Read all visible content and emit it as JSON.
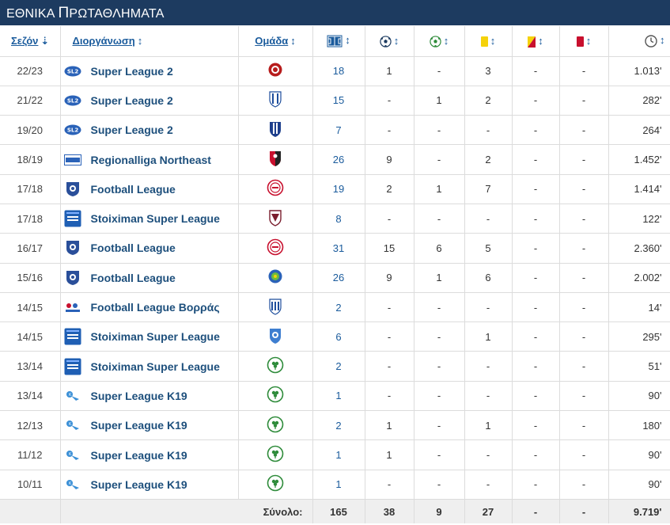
{
  "title": {
    "first": "ΕΘΝΙΚΑ",
    "second_cap": "Π",
    "second_rest": "ΡΩΤΑΘΛΗΜΑΤΑ"
  },
  "headers": {
    "season": "Σεζόν",
    "competition": "Διοργάνωση",
    "club": "Ομάδα",
    "sort_desc": "⇣",
    "sort_both": "↕"
  },
  "colors": {
    "header_bg": "#1d3b60",
    "link": "#1d4f7c",
    "yellow": "#f5d20a",
    "red": "#c8102e",
    "green": "#2e8b3a"
  },
  "rows": [
    {
      "season": "22/23",
      "competition": "Super League 2",
      "comp_icon": "super-league-2-logo",
      "club_icon": "club-crest-red-circle",
      "apps": "18",
      "goals": "1",
      "assists": "-",
      "yellow": "3",
      "yellow_red": "-",
      "red": "-",
      "minutes": "1.013'"
    },
    {
      "season": "21/22",
      "competition": "Super League 2",
      "comp_icon": "super-league-2-logo",
      "club_icon": "club-crest-blue-white-stripes",
      "apps": "15",
      "goals": "-",
      "assists": "1",
      "yellow": "2",
      "yellow_red": "-",
      "red": "-",
      "minutes": "282'"
    },
    {
      "season": "19/20",
      "competition": "Super League 2",
      "comp_icon": "super-league-2-logo",
      "club_icon": "club-crest-blue-striped-shield",
      "apps": "7",
      "goals": "-",
      "assists": "-",
      "yellow": "-",
      "yellow_red": "-",
      "red": "-",
      "minutes": "264'"
    },
    {
      "season": "18/19",
      "competition": "Regionalliga Northeast",
      "comp_icon": "regionalliga-logo",
      "club_icon": "club-crest-red-black-shield",
      "apps": "26",
      "goals": "9",
      "assists": "-",
      "yellow": "2",
      "yellow_red": "-",
      "red": "-",
      "minutes": "1.452'"
    },
    {
      "season": "17/18",
      "competition": "Football League",
      "comp_icon": "football-league-logo",
      "club_icon": "club-crest-red-white-circle",
      "apps": "19",
      "goals": "2",
      "assists": "1",
      "yellow": "7",
      "yellow_red": "-",
      "red": "-",
      "minutes": "1.414'"
    },
    {
      "season": "17/18",
      "competition": "Stoiximan Super League",
      "comp_icon": "stoiximan-logo",
      "club_icon": "club-crest-maroon-shield",
      "apps": "8",
      "goals": "-",
      "assists": "-",
      "yellow": "-",
      "yellow_red": "-",
      "red": "-",
      "minutes": "122'"
    },
    {
      "season": "16/17",
      "competition": "Football League",
      "comp_icon": "football-league-logo",
      "club_icon": "club-crest-red-white-circle",
      "apps": "31",
      "goals": "15",
      "assists": "6",
      "yellow": "5",
      "yellow_red": "-",
      "red": "-",
      "minutes": "2.360'"
    },
    {
      "season": "15/16",
      "competition": "Football League",
      "comp_icon": "football-league-logo",
      "club_icon": "club-crest-blue-green-round",
      "apps": "26",
      "goals": "9",
      "assists": "1",
      "yellow": "6",
      "yellow_red": "-",
      "red": "-",
      "minutes": "2.002'"
    },
    {
      "season": "14/15",
      "competition": "Football League Βορράς",
      "comp_icon": "football-league-north-logo",
      "club_icon": "club-crest-blue-white-shield",
      "apps": "2",
      "goals": "-",
      "assists": "-",
      "yellow": "-",
      "yellow_red": "-",
      "red": "-",
      "minutes": "14'"
    },
    {
      "season": "14/15",
      "competition": "Stoiximan Super League",
      "comp_icon": "stoiximan-logo",
      "club_icon": "club-crest-blue-shield",
      "apps": "6",
      "goals": "-",
      "assists": "-",
      "yellow": "1",
      "yellow_red": "-",
      "red": "-",
      "minutes": "295'"
    },
    {
      "season": "13/14",
      "competition": "Stoiximan Super League",
      "comp_icon": "stoiximan-logo",
      "club_icon": "club-crest-green-clover",
      "apps": "2",
      "goals": "-",
      "assists": "-",
      "yellow": "-",
      "yellow_red": "-",
      "red": "-",
      "minutes": "51'"
    },
    {
      "season": "13/14",
      "competition": "Super League K19",
      "comp_icon": "super-league-k19-logo",
      "club_icon": "club-crest-green-clover",
      "apps": "1",
      "goals": "-",
      "assists": "-",
      "yellow": "-",
      "yellow_red": "-",
      "red": "-",
      "minutes": "90'"
    },
    {
      "season": "12/13",
      "competition": "Super League K19",
      "comp_icon": "super-league-k19-logo",
      "club_icon": "club-crest-green-clover",
      "apps": "2",
      "goals": "1",
      "assists": "-",
      "yellow": "1",
      "yellow_red": "-",
      "red": "-",
      "minutes": "180'"
    },
    {
      "season": "11/12",
      "competition": "Super League K19",
      "comp_icon": "super-league-k19-logo",
      "club_icon": "club-crest-green-clover",
      "apps": "1",
      "goals": "1",
      "assists": "-",
      "yellow": "-",
      "yellow_red": "-",
      "red": "-",
      "minutes": "90'"
    },
    {
      "season": "10/11",
      "competition": "Super League K19",
      "comp_icon": "super-league-k19-logo",
      "club_icon": "club-crest-green-clover",
      "apps": "1",
      "goals": "-",
      "assists": "-",
      "yellow": "-",
      "yellow_red": "-",
      "red": "-",
      "minutes": "90'"
    }
  ],
  "totals": {
    "label": "Σύνολο:",
    "apps": "165",
    "goals": "38",
    "assists": "9",
    "yellow": "27",
    "yellow_red": "-",
    "red": "-",
    "minutes": "9.719'"
  }
}
